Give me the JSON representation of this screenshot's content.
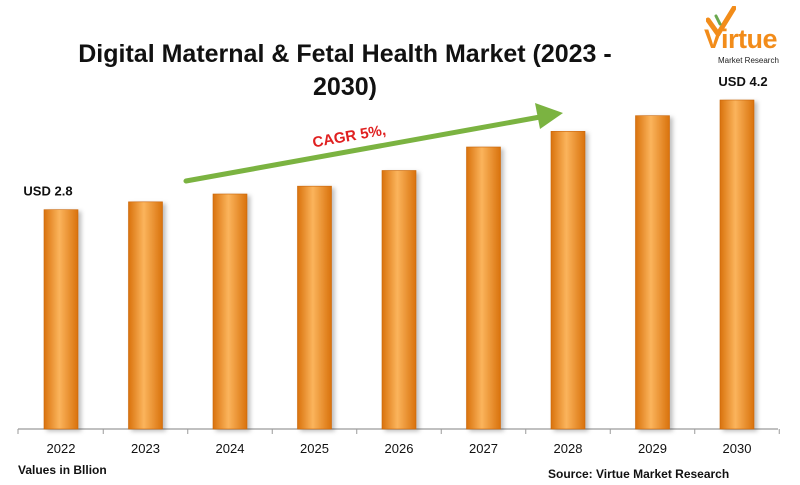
{
  "header": {
    "title_line1": "Digital Maternal & Fetal Health Market (2023 -",
    "title_line2": "2030)"
  },
  "logo": {
    "main": "Virtue",
    "sub": "Market Research",
    "accent": "#f28c1a"
  },
  "footer": {
    "units_note": "Values in Bllion",
    "source": "Source: Virtue Market Research"
  },
  "annotation": {
    "cagr": "CAGR 5%,",
    "arrow_color": "#7bb341",
    "text_color": "#e02020"
  },
  "colors": {
    "bar": "#f7941d",
    "bar_light": "#fbb45c",
    "bar_dark": "#d9720c",
    "axis": "#9a9a9a"
  },
  "chart_data": {
    "type": "bar",
    "title": "Digital Maternal & Fetal Health Market (2023 - 2030)",
    "categories": [
      "2022",
      "2023",
      "2024",
      "2025",
      "2026",
      "2027",
      "2028",
      "2029",
      "2030"
    ],
    "values": [
      2.8,
      2.9,
      3.0,
      3.1,
      3.3,
      3.6,
      3.8,
      4.0,
      4.2
    ],
    "data_labels": [
      {
        "category": "2022",
        "text": "USD 2.8"
      },
      {
        "category": "2030",
        "text": "USD 4.2"
      }
    ],
    "ylim": [
      0,
      4.2
    ],
    "grid": false,
    "legend": "none"
  }
}
